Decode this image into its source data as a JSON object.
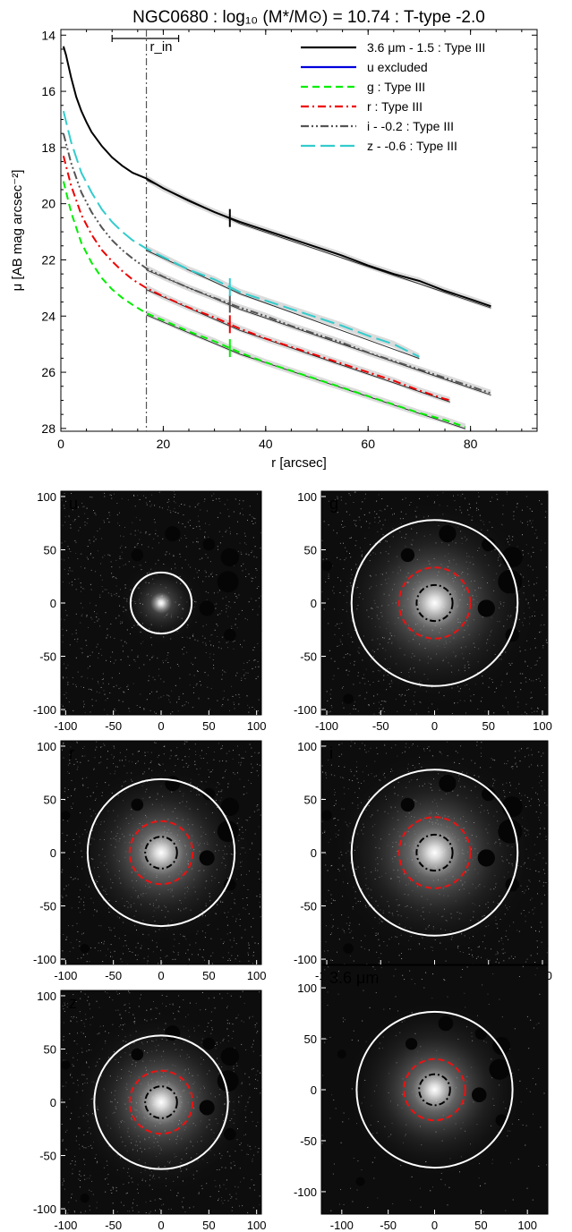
{
  "title": "NGC0680 : log₁₀ (M*/M⊙) = 10.74 : T-type -2.0",
  "chart_data": [
    {
      "type": "line",
      "xlabel": "r [arcsec]",
      "ylabel": "μ [AB mag arcsec⁻²]",
      "xlim": [
        0,
        93
      ],
      "ylim": [
        28.1,
        13.8
      ],
      "y_inverted": true,
      "xticks": [
        "0",
        "20",
        "40",
        "60",
        "80"
      ],
      "yticks": [
        "14",
        "16",
        "18",
        "20",
        "22",
        "24",
        "26",
        "28"
      ],
      "rin_label": "r_in",
      "rin": 16.7,
      "rin_bar": [
        10,
        23
      ],
      "legend_position": "top-right",
      "series": [
        {
          "name": "3.6 μm - 1.5 : Type III",
          "color": "#000000",
          "dash": "solid",
          "break_r": 33,
          "x": [
            0.5,
            1,
            2,
            3,
            4,
            5,
            6,
            8,
            10,
            12,
            14,
            16.7,
            20,
            25,
            30,
            35,
            40,
            45,
            50,
            55,
            60,
            65,
            70,
            75,
            80,
            84
          ],
          "y": [
            14.4,
            14.7,
            15.5,
            16.2,
            16.7,
            17.1,
            17.45,
            17.95,
            18.35,
            18.65,
            18.9,
            19.1,
            19.45,
            19.9,
            20.3,
            20.65,
            20.95,
            21.25,
            21.55,
            21.85,
            22.2,
            22.5,
            22.75,
            23.1,
            23.4,
            23.65
          ]
        },
        {
          "name": "u excluded",
          "color": "#0000dd",
          "dash": "solid",
          "x": [],
          "y": []
        },
        {
          "name": "g : Type III",
          "color": "#00ee00",
          "dash": "dashed",
          "break_r": 33,
          "x": [
            0.5,
            2,
            4,
            6,
            8,
            10,
            12,
            14,
            16.7,
            20,
            25,
            30,
            35,
            40,
            45,
            50,
            55,
            60,
            65,
            70,
            75,
            79
          ],
          "y": [
            19.2,
            20.3,
            21.4,
            22.1,
            22.65,
            23.05,
            23.35,
            23.6,
            23.9,
            24.15,
            24.55,
            24.9,
            25.3,
            25.65,
            25.95,
            26.25,
            26.55,
            26.85,
            27.15,
            27.45,
            27.7,
            27.95
          ]
        },
        {
          "name": "r : Type III",
          "color": "#ee0000",
          "dash": "dashdot",
          "break_r": 33,
          "x": [
            0.5,
            2,
            4,
            6,
            8,
            10,
            12,
            14,
            16.7,
            20,
            25,
            30,
            35,
            40,
            45,
            50,
            55,
            60,
            65,
            70,
            75,
            76
          ],
          "y": [
            18.3,
            19.35,
            20.4,
            21.1,
            21.65,
            22.05,
            22.4,
            22.7,
            23.0,
            23.3,
            23.7,
            24.05,
            24.45,
            24.8,
            25.1,
            25.4,
            25.7,
            26.0,
            26.3,
            26.65,
            26.95,
            27.0
          ]
        },
        {
          "name": "i - -0.2 : Type III",
          "color": "#555555",
          "dash": "dashdotdot",
          "break_r": 33,
          "x": [
            0.5,
            2,
            4,
            6,
            8,
            10,
            12,
            14,
            16.7,
            20,
            25,
            30,
            35,
            40,
            45,
            50,
            55,
            60,
            65,
            70,
            75,
            80,
            84
          ],
          "y": [
            17.5,
            18.55,
            19.6,
            20.3,
            20.85,
            21.3,
            21.65,
            21.95,
            22.3,
            22.6,
            23.0,
            23.35,
            23.7,
            24.0,
            24.35,
            24.65,
            24.95,
            25.3,
            25.6,
            25.9,
            26.2,
            26.5,
            26.75
          ]
        },
        {
          "name": "z - -0.6 : Type III",
          "color": "#33cccc",
          "dash": "longdash",
          "break_r": 33,
          "x": [
            0.5,
            2,
            4,
            6,
            8,
            10,
            12,
            14,
            16.7,
            20,
            25,
            30,
            35,
            40,
            45,
            50,
            55,
            60,
            65,
            70
          ],
          "y": [
            16.7,
            17.8,
            18.9,
            19.6,
            20.2,
            20.65,
            21.0,
            21.3,
            21.6,
            21.9,
            22.35,
            22.7,
            23.15,
            23.45,
            23.75,
            24.05,
            24.35,
            24.7,
            25.0,
            25.45
          ]
        }
      ]
    },
    {
      "type": "heatmap",
      "panels": [
        {
          "label": "u",
          "xticks": [
            "-100",
            "-50",
            "0",
            "50",
            "100"
          ],
          "yticks": [
            "100",
            "50",
            "0",
            "-50",
            "-100"
          ],
          "xlim": [
            -105,
            105
          ],
          "ylim": [
            -105,
            105
          ],
          "circles": [
            {
              "style": "solid-white",
              "radius": 32
            }
          ]
        },
        {
          "label": "g",
          "xticks": [
            "-100",
            "-50",
            "0",
            "50",
            "100"
          ],
          "yticks": [
            "100",
            "50",
            "0",
            "-50",
            "-100"
          ],
          "xlim": [
            -105,
            105
          ],
          "ylim": [
            -105,
            105
          ],
          "circles": [
            {
              "style": "solid-white",
              "radius": 77
            },
            {
              "style": "dashed-red",
              "radius": 33
            },
            {
              "style": "dashdot-black",
              "radius": 16.7
            }
          ]
        },
        {
          "label": "r",
          "xticks": [
            "-100",
            "-50",
            "0",
            "50",
            "100"
          ],
          "yticks": [
            "100",
            "50",
            "0",
            "-50",
            "-100"
          ],
          "xlim": [
            -105,
            105
          ],
          "ylim": [
            -105,
            105
          ],
          "circles": [
            {
              "style": "solid-white",
              "radius": 77
            },
            {
              "style": "dashed-red",
              "radius": 33
            },
            {
              "style": "dashdot-black",
              "radius": 16.7
            }
          ]
        },
        {
          "label": "i",
          "xticks": [
            "-100",
            "-50",
            "0",
            "50",
            "100"
          ],
          "yticks": [
            "100",
            "50",
            "0",
            "-50",
            "-100"
          ],
          "xlim": [
            -105,
            105
          ],
          "ylim": [
            -105,
            105
          ],
          "circles": [
            {
              "style": "solid-white",
              "radius": 77
            },
            {
              "style": "dashed-red",
              "radius": 33
            },
            {
              "style": "dashdot-black",
              "radius": 16.7
            }
          ]
        },
        {
          "label": "z",
          "xticks": [
            "-100",
            "-50",
            "0",
            "50",
            "100"
          ],
          "yticks": [
            "100",
            "50",
            "0",
            "-50",
            "-100"
          ],
          "xlim": [
            -105,
            105
          ],
          "ylim": [
            -105,
            105
          ],
          "circles": [
            {
              "style": "solid-white",
              "radius": 70
            },
            {
              "style": "dashed-red",
              "radius": 33
            },
            {
              "style": "dashdot-black",
              "radius": 16.7
            }
          ]
        },
        {
          "label": "3.6 μm",
          "xticks": [
            "-100",
            "-50",
            "0",
            "50",
            "100"
          ],
          "yticks": [
            "100",
            "50",
            "0",
            "-50",
            "-100"
          ],
          "xlim": [
            -122,
            122
          ],
          "ylim": [
            -122,
            122
          ],
          "circles": [
            {
              "style": "solid-white",
              "radius": 84
            },
            {
              "style": "dashed-red",
              "radius": 33
            },
            {
              "style": "dashdot-black",
              "radius": 16.7
            }
          ]
        }
      ]
    }
  ]
}
